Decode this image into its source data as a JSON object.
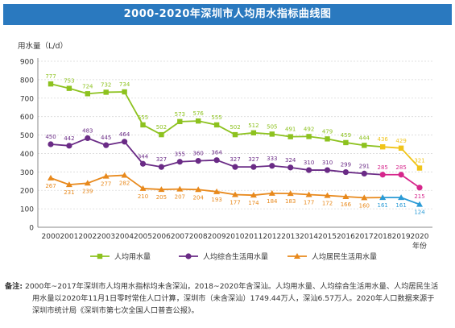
{
  "title": "2000-2020年深圳市人均用水指标曲线图",
  "note": {
    "label": "备注:",
    "line1": "2000年~2017年深圳市人均用水指标均未含深汕，2018~2020年含深汕。人均用水量、人均综合生活用水量、人均居民生活",
    "line2": "用水量以2020年11月1日零时常住人口计算，深圳市（未含深汕）1749.44万人，深汕6.57万人。2020年人口数据来源于",
    "line3": "深圳市统计局《深圳市第七次全国人口普查公报》。"
  },
  "chart_data": {
    "type": "line",
    "ylabel": "用水量（L/d）",
    "xlabel": "年份",
    "ylim": [
      0,
      900
    ],
    "yticks": [
      0,
      100,
      200,
      300,
      400,
      500,
      600,
      700,
      800,
      900
    ],
    "x": [
      "2000",
      "2001",
      "2002",
      "2003",
      "2004",
      "2005",
      "2006",
      "2007",
      "2008",
      "2009",
      "2010",
      "2011",
      "2012",
      "2013",
      "2014",
      "2015",
      "2016",
      "2017",
      "2018",
      "2019",
      "2020"
    ],
    "grid": true,
    "legend_position": "bottom",
    "series": [
      {
        "name": "人均用水量",
        "color": "#8dc21f",
        "highlight_color": "#f0c419",
        "marker": "square",
        "values": [
          777,
          753,
          724,
          732,
          734,
          555,
          502,
          573,
          576,
          555,
          502,
          512,
          505,
          491,
          492,
          479,
          459,
          444,
          436,
          429,
          321
        ]
      },
      {
        "name": "人均综合生活用水量",
        "color": "#6a2b86",
        "highlight_color": "#d6278c",
        "marker": "circle",
        "values": [
          450,
          442,
          483,
          445,
          464,
          344,
          327,
          355,
          360,
          364,
          327,
          327,
          333,
          324,
          310,
          310,
          299,
          291,
          285,
          285,
          215
        ]
      },
      {
        "name": "人均居民生活用水量",
        "color": "#e8891c",
        "highlight_color": "#2b9bd6",
        "marker": "triangle",
        "values": [
          267,
          231,
          239,
          277,
          282,
          210,
          205,
          207,
          204,
          193,
          177,
          174,
          184,
          183,
          177,
          172,
          166,
          160,
          161,
          161,
          124
        ]
      }
    ]
  }
}
